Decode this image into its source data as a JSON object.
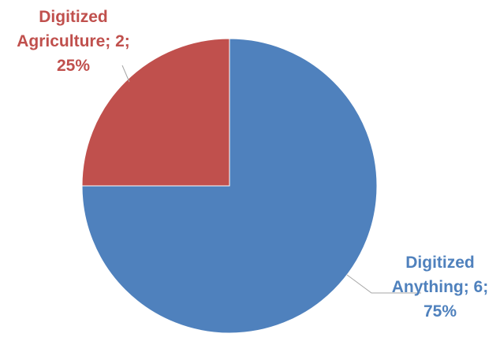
{
  "chart_data": {
    "type": "pie",
    "title": "",
    "start_angle_deg": 0,
    "direction": "clockwise",
    "legend": "none",
    "slices": [
      {
        "label": "Digitized Anything",
        "value": 6,
        "percent": "75%",
        "color": "#4f81bd",
        "label_lines": [
          "Digitized",
          "Anything; 6;",
          "75%"
        ]
      },
      {
        "label": "Digitized Agriculture",
        "value": 2,
        "percent": "25%",
        "color": "#c0504d",
        "label_lines": [
          "Digitized",
          "Agriculture; 2;",
          "25%"
        ]
      }
    ]
  }
}
